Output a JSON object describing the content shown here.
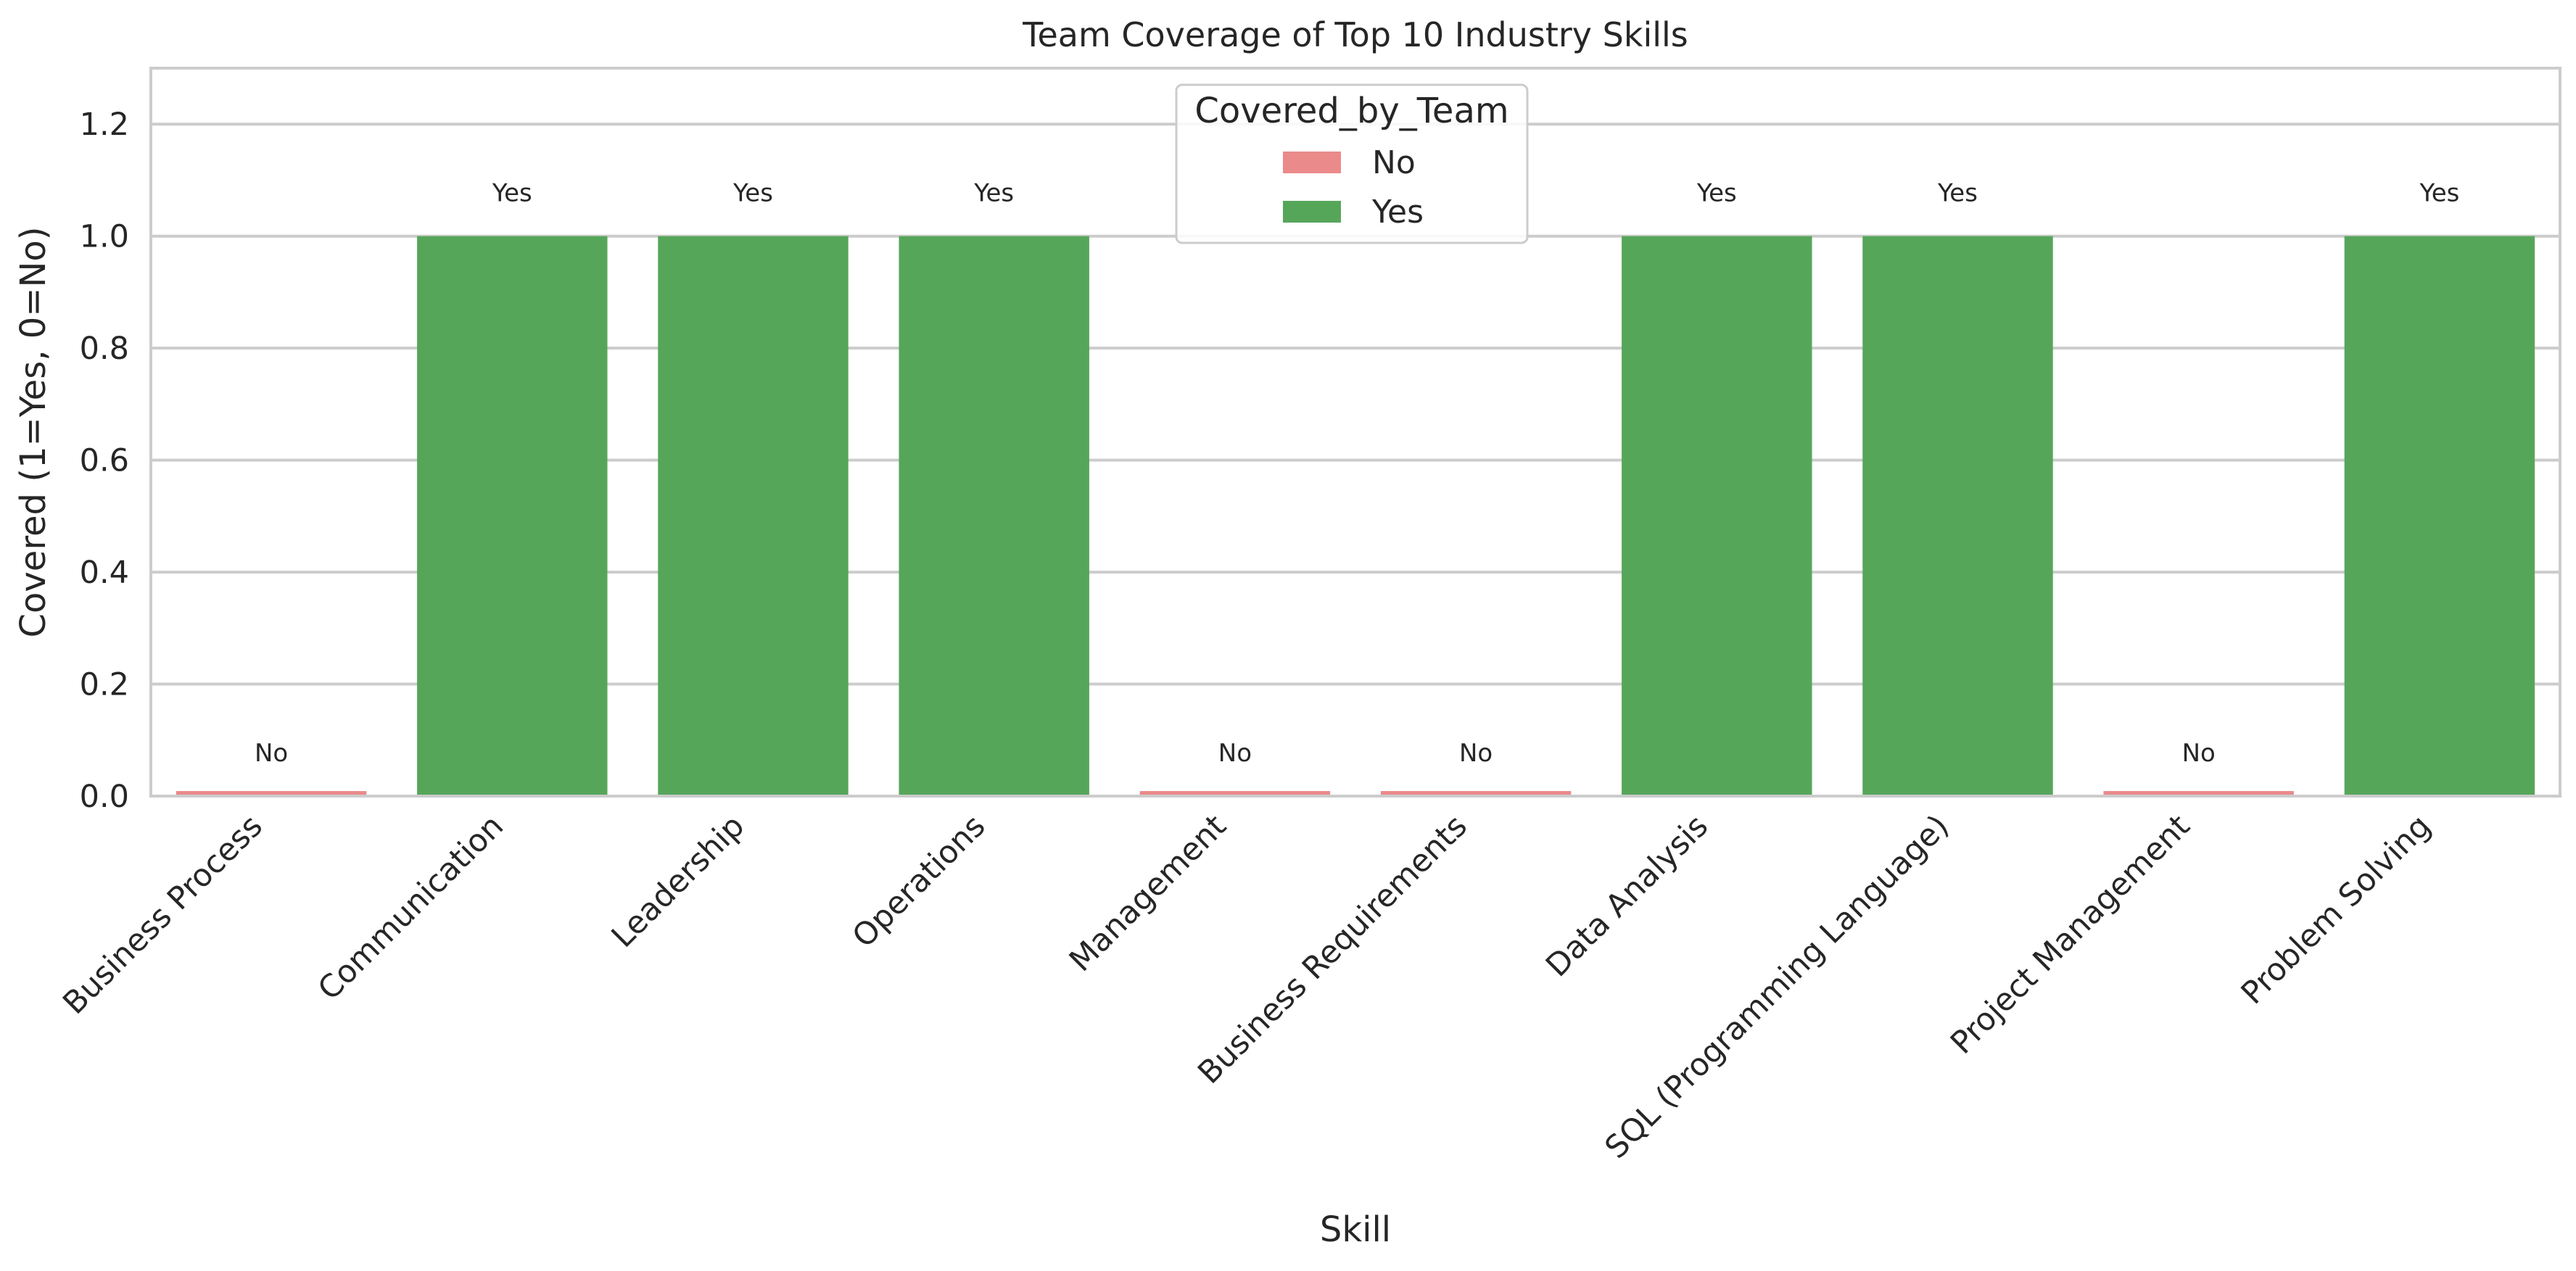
{
  "chart_data": {
    "type": "bar",
    "title": "Team Coverage of Top 10 Industry Skills",
    "xlabel": "Skill",
    "ylabel": "Covered (1=Yes, 0=No)",
    "ylim": [
      0,
      1.3
    ],
    "yticks": [
      "0.0",
      "0.2",
      "0.4",
      "0.6",
      "0.8",
      "1.0",
      "1.2"
    ],
    "grid": true,
    "legend": {
      "title": "Covered_by_Team",
      "placement": "top-center",
      "entries": [
        {
          "label": "No",
          "color": "#ea8a8a"
        },
        {
          "label": "Yes",
          "color": "#56a65a"
        }
      ]
    },
    "categories": [
      "Business Process",
      "Communication",
      "Leadership",
      "Operations",
      "Management",
      "Business Requirements",
      "Data Analysis",
      "SQL (Programming Language)",
      "Project Management",
      "Problem Solving"
    ],
    "values": [
      0,
      1,
      1,
      1,
      0,
      0,
      1,
      1,
      0,
      1
    ],
    "labels": [
      "No",
      "Yes",
      "Yes",
      "Yes",
      "No",
      "No",
      "Yes",
      "Yes",
      "No",
      "Yes"
    ],
    "colors": {
      "No": "#ea8a8a",
      "Yes": "#56a65a"
    }
  }
}
